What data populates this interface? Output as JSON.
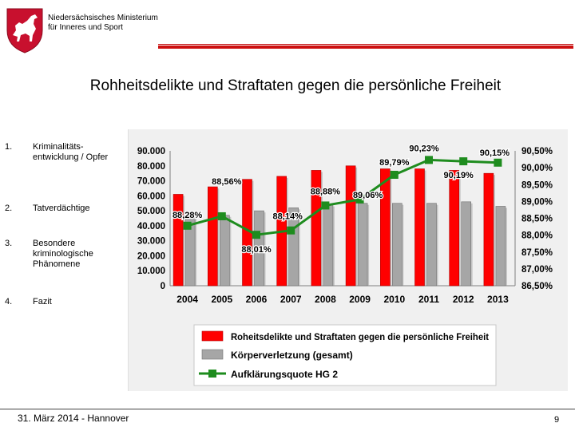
{
  "header": {
    "ministry_line1": "Niedersächsisches Ministerium",
    "ministry_line2": "für Inneres und Sport",
    "logo_colors": {
      "shield": "#c8102e",
      "horse": "#ffffff"
    }
  },
  "title": "Rohheitsdelikte und Straftaten gegen die persönliche Freiheit",
  "menu": [
    {
      "num": "1.",
      "label": "Kriminalitäts-entwicklung / Opfer"
    },
    {
      "num": "2.",
      "label": "Tatverdächtige"
    },
    {
      "num": "3.",
      "label": "Besondere kriminologische Phänomene"
    },
    {
      "num": "4.",
      "label": "Fazit"
    }
  ],
  "chart_data": {
    "type": "bar",
    "categories": [
      "2004",
      "2005",
      "2006",
      "2007",
      "2008",
      "2009",
      "2010",
      "2011",
      "2012",
      "2013"
    ],
    "series": [
      {
        "name": "Roheitsdelikte und Straftaten gegen die persönliche Freiheit",
        "type": "bar",
        "axis": "left",
        "color": "#ff0000",
        "values": [
          61000,
          66000,
          71000,
          73000,
          77000,
          80000,
          78000,
          78000,
          77000,
          75000
        ]
      },
      {
        "name": "Körperverletzung (gesamt)",
        "type": "bar",
        "axis": "left",
        "color": "#a6a6a6",
        "values": [
          47000,
          47000,
          50000,
          52000,
          54000,
          55000,
          55000,
          55000,
          56000,
          53000
        ]
      },
      {
        "name": "Aufklärungsquote HG 2",
        "type": "line",
        "axis": "right",
        "color": "#1e8c1e",
        "values": [
          88.28,
          88.56,
          88.01,
          88.14,
          88.88,
          89.06,
          89.79,
          90.23,
          90.19,
          90.15
        ],
        "labels": [
          "88,28%",
          "88,56%",
          "88,01%",
          "88,14%",
          "88,88%",
          "89,06%",
          "89,79%",
          "90,23%",
          "90,19%",
          "90,15%"
        ]
      }
    ],
    "y_left": {
      "min": 0,
      "max": 90000,
      "ticks": [
        "0",
        "10.000",
        "20.000",
        "30.000",
        "40.000",
        "50.000",
        "60.000",
        "70.000",
        "80.000",
        "90.000"
      ]
    },
    "y_right": {
      "min": 86.5,
      "max": 90.5,
      "ticks": [
        "86,50%",
        "87,00%",
        "87,50%",
        "88,00%",
        "88,50%",
        "89,00%",
        "89,50%",
        "90,00%",
        "90,50%"
      ]
    },
    "legend_entries": [
      "Roheitsdelikte und Straftaten gegen die persönliche Freiheit",
      "Körperverletzung (gesamt)",
      "Aufklärungsquote HG 2"
    ],
    "legend_position": "bottom",
    "grid": false
  },
  "footer": {
    "date": "31. März 2014 - Hannover",
    "page": "9"
  }
}
